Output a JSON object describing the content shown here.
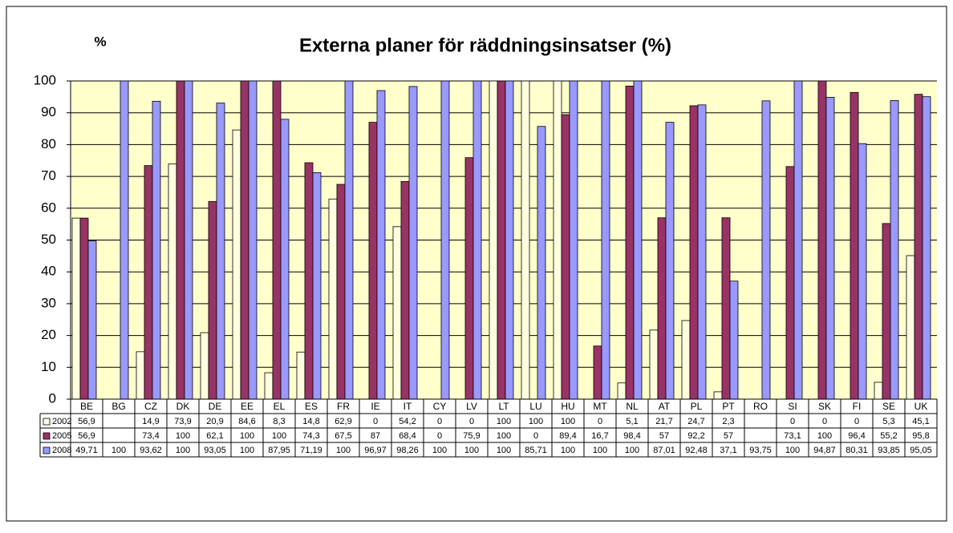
{
  "chart_data": {
    "type": "bar",
    "title": "Externa planer för räddningsinsatser (%)",
    "y_label": "%",
    "categories": [
      "BE",
      "BG",
      "CZ",
      "DK",
      "DE",
      "EE",
      "EL",
      "ES",
      "FR",
      "IE",
      "IT",
      "CY",
      "LV",
      "LT",
      "LU",
      "HU",
      "MT",
      "NL",
      "AT",
      "PL",
      "PT",
      "RO",
      "SI",
      "SK",
      "FI",
      "SE",
      "UK"
    ],
    "series": [
      {
        "name": "2002",
        "color": "#ffffe0",
        "values": [
          56.9,
          null,
          14.9,
          73.9,
          20.9,
          84.6,
          8.3,
          14.8,
          62.9,
          0,
          54.2,
          0,
          0,
          100,
          100,
          100,
          0,
          5.1,
          21.7,
          24.7,
          2.3,
          null,
          0,
          0,
          0,
          5.3,
          45.1
        ],
        "value_labels": [
          "56,9",
          null,
          "14,9",
          "73,9",
          "20,9",
          "84,6",
          "8,3",
          "14,8",
          "62,9",
          "0",
          "54,2",
          "0",
          "0",
          "100",
          "100",
          "100",
          "0",
          "5,1",
          "21,7",
          "24,7",
          "2,3",
          null,
          "0",
          "0",
          "0",
          "5,3",
          "45,1"
        ]
      },
      {
        "name": "2005",
        "color": "#993366",
        "values": [
          56.9,
          null,
          73.4,
          100,
          62.1,
          100,
          100,
          74.3,
          67.5,
          87,
          68.4,
          0,
          75.9,
          100,
          0,
          89.4,
          16.7,
          98.4,
          57,
          92.2,
          57,
          null,
          73.1,
          100,
          96.4,
          55.2,
          95.8
        ],
        "value_labels": [
          "56,9",
          null,
          "73,4",
          "100",
          "62,1",
          "100",
          "100",
          "74,3",
          "67,5",
          "87",
          "68,4",
          "0",
          "75,9",
          "100",
          "0",
          "89,4",
          "16,7",
          "98,4",
          "57",
          "92,2",
          "57",
          null,
          "73,1",
          "100",
          "96,4",
          "55,2",
          "95,8"
        ]
      },
      {
        "name": "2008",
        "color": "#9999ff",
        "values": [
          49.71,
          100,
          93.62,
          100,
          93.05,
          100,
          87.95,
          71.19,
          100,
          96.97,
          98.26,
          100,
          100,
          100,
          85.71,
          100,
          100,
          100,
          87.01,
          92.48,
          37.1,
          93.75,
          100,
          94.87,
          80.31,
          93.85,
          95.05
        ],
        "value_labels": [
          "49,71",
          "100",
          "93,62",
          "100",
          "93,05",
          "100",
          "87,95",
          "71,19",
          "100",
          "96,97",
          "98,26",
          "100",
          "100",
          "100",
          "85,71",
          "100",
          "100",
          "100",
          "87,01",
          "92,48",
          "37,1",
          "93,75",
          "100",
          "94,87",
          "80,31",
          "93,85",
          "95,05"
        ]
      }
    ],
    "ylim": [
      0,
      100
    ],
    "yticks": [
      0,
      10,
      20,
      30,
      40,
      50,
      60,
      70,
      80,
      90,
      100
    ],
    "grid": true
  }
}
